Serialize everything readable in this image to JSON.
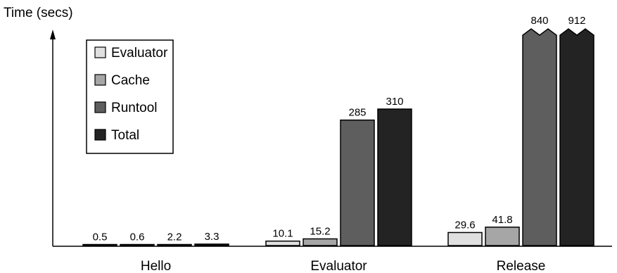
{
  "chart_data": {
    "type": "bar",
    "ylabel": "Time (secs)",
    "categories": [
      "Hello",
      "Evaluator",
      "Release"
    ],
    "series": [
      {
        "name": "Evaluator",
        "values": [
          0.5,
          10.1,
          29.6
        ],
        "labels": [
          "0.5",
          "10.1",
          "29.6"
        ],
        "color": "#e0e0e0"
      },
      {
        "name": "Cache",
        "values": [
          0.6,
          15.2,
          41.8
        ],
        "labels": [
          "0.6",
          "15.2",
          "41.8"
        ],
        "color": "#a6a6a6"
      },
      {
        "name": "Runtool",
        "values": [
          2.2,
          285,
          840
        ],
        "labels": [
          "2.2",
          "285",
          "840"
        ],
        "color": "#5e5e5e"
      },
      {
        "name": "Total",
        "values": [
          3.3,
          310,
          912
        ],
        "labels": [
          "3.3",
          "310",
          "912"
        ],
        "color": "#232323"
      }
    ],
    "y_axis_truncated_above": 310,
    "broken_bars_note": "Release Runtool and Total bars drawn with zigzag tops (axis break)",
    "legend": "top-left",
    "grid": false
  }
}
